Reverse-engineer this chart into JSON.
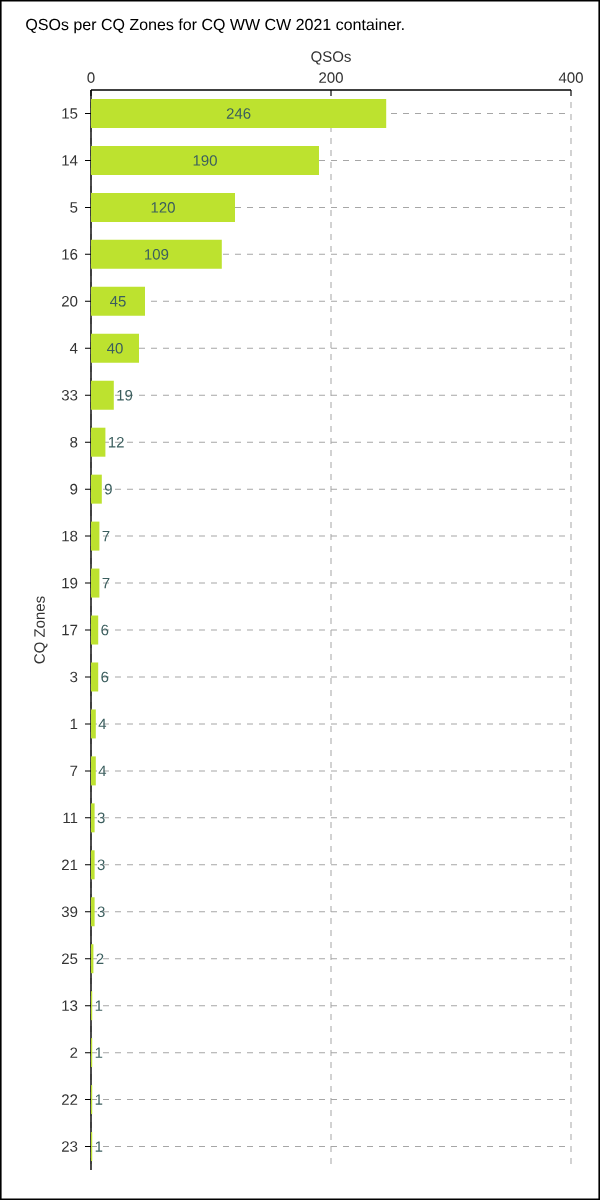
{
  "chart_data": {
    "type": "bar",
    "orientation": "horizontal",
    "title": "QSOs per CQ Zones for CQ WW CW 2021 container.",
    "xlabel": "QSOs",
    "ylabel": "CQ Zones",
    "categories": [
      "15",
      "14",
      "5",
      "16",
      "20",
      "4",
      "33",
      "8",
      "9",
      "18",
      "19",
      "17",
      "3",
      "1",
      "7",
      "11",
      "21",
      "39",
      "25",
      "13",
      "2",
      "22",
      "23"
    ],
    "values": [
      246,
      190,
      120,
      109,
      45,
      40,
      19,
      12,
      9,
      7,
      7,
      6,
      6,
      4,
      4,
      3,
      3,
      3,
      2,
      1,
      1,
      1,
      1
    ],
    "color": "#bde22f",
    "xlim": [
      0,
      400
    ],
    "xticks": [
      0,
      200,
      400
    ],
    "grid": true,
    "data_labels": true
  }
}
